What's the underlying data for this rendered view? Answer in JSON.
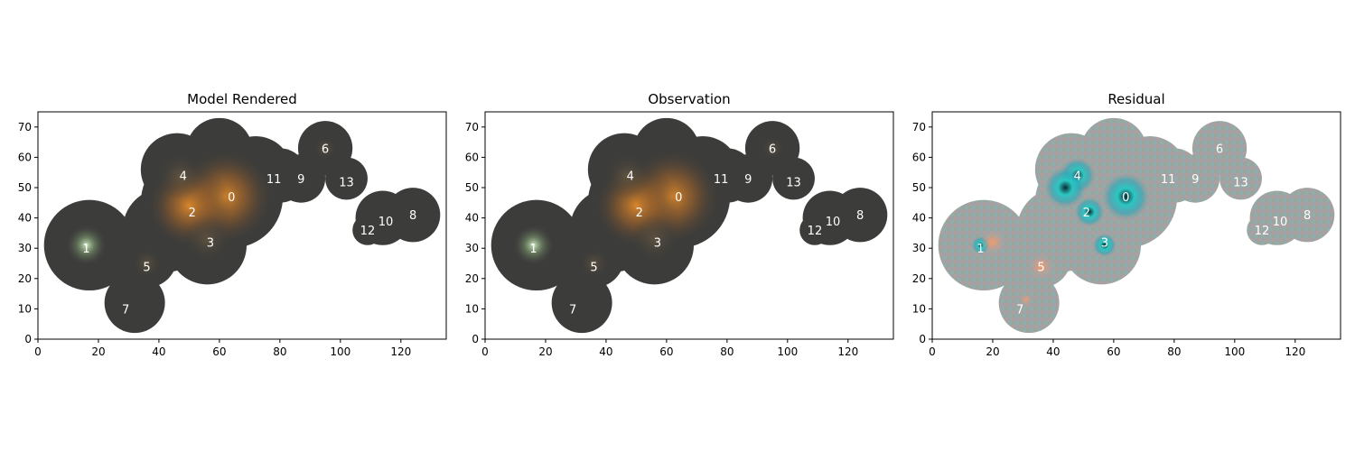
{
  "figure": {
    "panels": [
      {
        "title": "Model Rendered",
        "kind": "model"
      },
      {
        "title": "Observation",
        "kind": "observation"
      },
      {
        "title": "Residual",
        "kind": "residual"
      }
    ]
  },
  "chart_data": {
    "type": "heatmap",
    "xlim": [
      0,
      135
    ],
    "ylim": [
      0,
      75
    ],
    "xticks": [
      0,
      20,
      40,
      60,
      80,
      100,
      120
    ],
    "yticks": [
      0,
      10,
      20,
      30,
      40,
      50,
      60,
      70
    ],
    "grid": false,
    "sources": [
      {
        "label": "0",
        "x": 64,
        "y": 47
      },
      {
        "label": "1",
        "x": 16,
        "y": 30
      },
      {
        "label": "2",
        "x": 51,
        "y": 42
      },
      {
        "label": "3",
        "x": 57,
        "y": 32
      },
      {
        "label": "4",
        "x": 48,
        "y": 54
      },
      {
        "label": "5",
        "x": 36,
        "y": 24
      },
      {
        "label": "6",
        "x": 95,
        "y": 63
      },
      {
        "label": "7",
        "x": 29,
        "y": 10
      },
      {
        "label": "8",
        "x": 124,
        "y": 41
      },
      {
        "label": "9",
        "x": 87,
        "y": 53
      },
      {
        "label": "10",
        "x": 115,
        "y": 39
      },
      {
        "label": "11",
        "x": 78,
        "y": 53
      },
      {
        "label": "12",
        "x": 109,
        "y": 36
      },
      {
        "label": "13",
        "x": 102,
        "y": 52
      }
    ],
    "colors": {
      "background_mask": "#3c3c3a",
      "bright_core": "#d98a2e",
      "green_source": "#a8c79a",
      "residual_base": "#8a9a98",
      "residual_cyan": "#33d6d0",
      "residual_pink": "#e8a0a0"
    }
  }
}
